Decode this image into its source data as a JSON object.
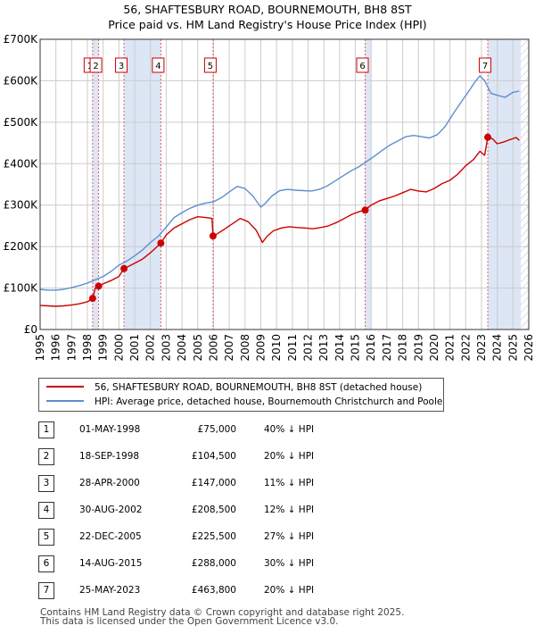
{
  "title_line1": "56, SHAFTESBURY ROAD, BOURNEMOUTH, BH8 8ST",
  "title_line2": "Price paid vs. HM Land Registry's House Price Index (HPI)",
  "colors": {
    "price_paid": "#cc0000",
    "hpi": "#5b8fd0",
    "shade": "#dde6f5",
    "vline": "#e06060",
    "grid": "#cccccc"
  },
  "legend": {
    "price_paid_label": "56, SHAFTESBURY ROAD, BOURNEMOUTH, BH8 8ST (detached house)",
    "hpi_label": "HPI: Average price, detached house, Bournemouth Christchurch and Poole"
  },
  "sales": [
    {
      "num": "1",
      "date": "01-MAY-1998",
      "price": "£75,000",
      "hpi_diff": "40% ↓ HPI"
    },
    {
      "num": "2",
      "date": "18-SEP-1998",
      "price": "£104,500",
      "hpi_diff": "20% ↓ HPI"
    },
    {
      "num": "3",
      "date": "28-APR-2000",
      "price": "£147,000",
      "hpi_diff": "11% ↓ HPI"
    },
    {
      "num": "4",
      "date": "30-AUG-2002",
      "price": "£208,500",
      "hpi_diff": "12% ↓ HPI"
    },
    {
      "num": "5",
      "date": "22-DEC-2005",
      "price": "£225,500",
      "hpi_diff": "27% ↓ HPI"
    },
    {
      "num": "6",
      "date": "14-AUG-2015",
      "price": "£288,000",
      "hpi_diff": "30% ↓ HPI"
    },
    {
      "num": "7",
      "date": "25-MAY-2023",
      "price": "£463,800",
      "hpi_diff": "20% ↓ HPI"
    }
  ],
  "footer_line1": "Contains HM Land Registry data © Crown copyright and database right 2025.",
  "footer_line2": "This data is licensed under the Open Government Licence v3.0.",
  "chart_data": {
    "type": "line",
    "title": "56, SHAFTESBURY ROAD, BOURNEMOUTH, BH8 8ST — Price paid vs. HM Land Registry's House Price Index (HPI)",
    "xlabel": "",
    "ylabel": "",
    "xlim": [
      1995,
      2026
    ],
    "ylim": [
      0,
      700000
    ],
    "grid": true,
    "legend_position": "bottom",
    "x_ticks": [
      1995,
      1996,
      1997,
      1998,
      1999,
      2000,
      2001,
      2002,
      2003,
      2004,
      2005,
      2006,
      2007,
      2008,
      2009,
      2010,
      2011,
      2012,
      2013,
      2014,
      2015,
      2016,
      2017,
      2018,
      2019,
      2020,
      2021,
      2022,
      2023,
      2024,
      2025,
      2026
    ],
    "y_ticks": [
      {
        "value": 0,
        "label": "£0"
      },
      {
        "value": 100000,
        "label": "£100K"
      },
      {
        "value": 200000,
        "label": "£200K"
      },
      {
        "value": 300000,
        "label": "£300K"
      },
      {
        "value": 400000,
        "label": "£400K"
      },
      {
        "value": 500000,
        "label": "£500K"
      },
      {
        "value": 600000,
        "label": "£600K"
      },
      {
        "value": 700000,
        "label": "£700K"
      }
    ],
    "shaded_spans": [
      [
        1998.33,
        1998.71
      ],
      [
        2000.32,
        2002.66
      ],
      [
        2015.62,
        2015.99
      ],
      [
        2023.4,
        2025.5
      ]
    ],
    "hatched_span": [
      2025.5,
      2026
    ],
    "markers": [
      {
        "label": "1",
        "x": 1998.33
      },
      {
        "label": "2",
        "x": 1998.71
      },
      {
        "label": "3",
        "x": 2000.32
      },
      {
        "label": "4",
        "x": 2002.66
      },
      {
        "label": "5",
        "x": 2005.97
      },
      {
        "label": "6",
        "x": 2015.62
      },
      {
        "label": "7",
        "x": 2023.4
      }
    ],
    "sale_points": [
      {
        "x": 1998.33,
        "y": 75000
      },
      {
        "x": 1998.71,
        "y": 104500
      },
      {
        "x": 2000.32,
        "y": 147000
      },
      {
        "x": 2002.66,
        "y": 208500
      },
      {
        "x": 2005.97,
        "y": 225500
      },
      {
        "x": 2015.62,
        "y": 288000
      },
      {
        "x": 2023.4,
        "y": 463800
      }
    ],
    "series": [
      {
        "name": "56, SHAFTESBURY ROAD, BOURNEMOUTH, BH8 8ST (detached house)",
        "color": "#cc0000",
        "x": [
          1995.0,
          1995.5,
          1996.0,
          1996.5,
          1997.0,
          1997.5,
          1998.0,
          1998.3,
          1998.33,
          1998.5,
          1998.71,
          1999.0,
          1999.5,
          2000.0,
          2000.32,
          2000.6,
          2001.0,
          2001.5,
          2002.0,
          2002.66,
          2003.0,
          2003.5,
          2004.0,
          2004.5,
          2005.0,
          2005.5,
          2005.9,
          2005.97,
          2006.2,
          2006.7,
          2007.2,
          2007.7,
          2008.2,
          2008.7,
          2009.1,
          2009.4,
          2009.8,
          2010.3,
          2010.8,
          2011.3,
          2011.8,
          2012.3,
          2012.8,
          2013.3,
          2013.8,
          2014.3,
          2014.8,
          2015.3,
          2015.62,
          2016.0,
          2016.5,
          2017.0,
          2017.5,
          2018.0,
          2018.5,
          2019.0,
          2019.5,
          2020.0,
          2020.5,
          2021.0,
          2021.5,
          2022.0,
          2022.5,
          2022.9,
          2023.2,
          2023.4,
          2023.7,
          2024.0,
          2024.4,
          2024.8,
          2025.2,
          2025.4
        ],
        "y": [
          58000,
          57000,
          56000,
          57000,
          59000,
          62000,
          67000,
          73000,
          75000,
          100000,
          104500,
          110000,
          118000,
          128000,
          147000,
          152000,
          160000,
          170000,
          185000,
          208500,
          228000,
          245000,
          255000,
          265000,
          272000,
          270000,
          268000,
          225500,
          230000,
          242000,
          255000,
          268000,
          260000,
          240000,
          210000,
          225000,
          238000,
          245000,
          248000,
          246000,
          245000,
          243000,
          246000,
          250000,
          258000,
          268000,
          278000,
          285000,
          288000,
          300000,
          310000,
          316000,
          322000,
          330000,
          338000,
          334000,
          332000,
          340000,
          352000,
          360000,
          375000,
          395000,
          410000,
          430000,
          420000,
          463800,
          460000,
          448000,
          452000,
          458000,
          463000,
          456000
        ]
      },
      {
        "name": "HPI: Average price, detached house, Bournemouth Christchurch and Poole",
        "color": "#5b8fd0",
        "x": [
          1995.0,
          1995.5,
          1996.0,
          1996.5,
          1997.0,
          1997.5,
          1998.0,
          1998.5,
          1999.0,
          1999.5,
          2000.0,
          2000.5,
          2001.0,
          2001.5,
          2002.0,
          2002.5,
          2003.0,
          2003.5,
          2004.0,
          2004.5,
          2005.0,
          2005.5,
          2006.0,
          2006.5,
          2007.0,
          2007.5,
          2008.0,
          2008.5,
          2009.0,
          2009.3,
          2009.7,
          2010.2,
          2010.7,
          2011.2,
          2011.7,
          2012.2,
          2012.7,
          2013.2,
          2013.7,
          2014.2,
          2014.7,
          2015.2,
          2015.7,
          2016.2,
          2016.7,
          2017.2,
          2017.7,
          2018.2,
          2018.7,
          2019.2,
          2019.7,
          2020.2,
          2020.7,
          2021.2,
          2021.7,
          2022.2,
          2022.6,
          2022.9,
          2023.2,
          2023.6,
          2024.0,
          2024.5,
          2025.0,
          2025.4
        ],
        "y": [
          97000,
          95000,
          95000,
          97000,
          101000,
          106000,
          112000,
          120000,
          128000,
          140000,
          155000,
          165000,
          178000,
          192000,
          210000,
          225000,
          247000,
          270000,
          282000,
          292000,
          300000,
          305000,
          308000,
          318000,
          332000,
          345000,
          340000,
          322000,
          295000,
          305000,
          322000,
          335000,
          338000,
          336000,
          335000,
          334000,
          338000,
          346000,
          358000,
          370000,
          382000,
          392000,
          405000,
          418000,
          432000,
          445000,
          455000,
          465000,
          468000,
          465000,
          462000,
          470000,
          490000,
          520000,
          548000,
          575000,
          598000,
          612000,
          600000,
          570000,
          565000,
          560000,
          572000,
          575000
        ]
      }
    ]
  }
}
